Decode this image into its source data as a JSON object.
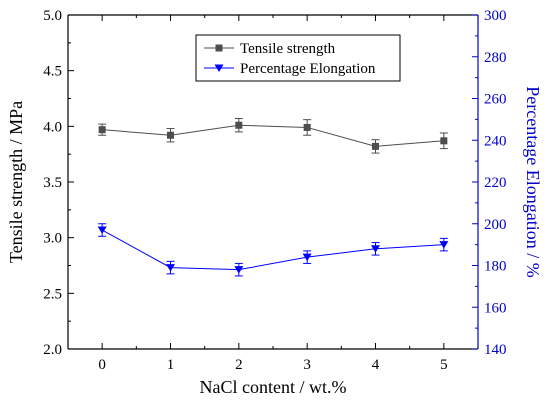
{
  "chart_data": {
    "type": "line",
    "x": [
      0,
      1,
      2,
      3,
      4,
      5
    ],
    "xlabel": "NaCl content / wt.%",
    "ylabel": "Tensile strength / MPa",
    "y2label": "Percentage Elongation / %",
    "xlim": [
      -0.5,
      5.5
    ],
    "ylim": [
      2.0,
      5.0
    ],
    "y2lim": [
      140,
      300
    ],
    "xticks": [
      "0",
      "1",
      "2",
      "3",
      "4",
      "5"
    ],
    "yticks": [
      "2.0",
      "2.5",
      "3.0",
      "3.5",
      "4.0",
      "4.5",
      "5.0"
    ],
    "y2ticks": [
      "140",
      "160",
      "180",
      "200",
      "220",
      "240",
      "260",
      "280",
      "300"
    ],
    "grid": false,
    "legend": "top-center",
    "series": [
      {
        "name": "Tensile strength",
        "axis": "left",
        "marker": "square",
        "color": "#4d4d4d",
        "values": [
          3.97,
          3.92,
          4.01,
          3.99,
          3.82,
          3.87
        ],
        "errors": [
          0.05,
          0.06,
          0.06,
          0.07,
          0.06,
          0.07
        ]
      },
      {
        "name": "Percentage Elongation",
        "axis": "right",
        "marker": "triangle-down",
        "color": "#0000ff",
        "values": [
          197,
          179,
          178,
          184,
          188,
          190
        ],
        "errors": [
          3,
          3,
          3,
          3,
          3,
          3
        ]
      }
    ]
  }
}
